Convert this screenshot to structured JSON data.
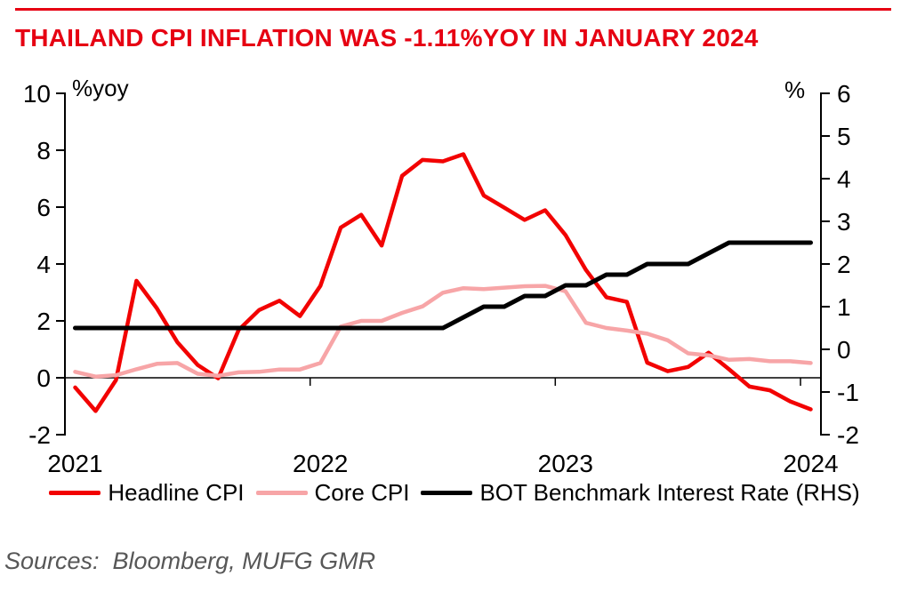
{
  "header": {
    "title": "THAILAND CPI INFLATION WAS -1.11%YOY IN JANUARY 2024",
    "title_color": "#e60012",
    "rule_color": "#e60012"
  },
  "chart_data": {
    "type": "line",
    "x": [
      "2021-01",
      "2021-02",
      "2021-03",
      "2021-04",
      "2021-05",
      "2021-06",
      "2021-07",
      "2021-08",
      "2021-09",
      "2021-10",
      "2021-11",
      "2021-12",
      "2022-01",
      "2022-02",
      "2022-03",
      "2022-04",
      "2022-05",
      "2022-06",
      "2022-07",
      "2022-08",
      "2022-09",
      "2022-10",
      "2022-11",
      "2022-12",
      "2023-01",
      "2023-02",
      "2023-03",
      "2023-04",
      "2023-05",
      "2023-06",
      "2023-07",
      "2023-08",
      "2023-09",
      "2023-10",
      "2023-11",
      "2023-12",
      "2024-01"
    ],
    "x_ticks": [
      {
        "index": 0,
        "label": "2021"
      },
      {
        "index": 12,
        "label": "2022"
      },
      {
        "index": 24,
        "label": "2023"
      },
      {
        "index": 36,
        "label": "2024"
      }
    ],
    "left_axis": {
      "label": "%yoy",
      "min": -2,
      "max": 10,
      "ticks": [
        10,
        8,
        6,
        4,
        2,
        0,
        -2
      ]
    },
    "right_axis": {
      "label": "%",
      "min": -2,
      "max": 6,
      "ticks": [
        6,
        5,
        4,
        3,
        2,
        1,
        0,
        -1,
        -2
      ]
    },
    "grid": false,
    "legend_position": "bottom",
    "series": [
      {
        "name": "Headline CPI",
        "axis": "left",
        "color": "#f20202",
        "width": 4.5,
        "values": [
          -0.34,
          -1.17,
          -0.08,
          3.41,
          2.44,
          1.25,
          0.45,
          -0.02,
          1.68,
          2.38,
          2.71,
          2.17,
          3.23,
          5.28,
          5.73,
          4.65,
          7.1,
          7.66,
          7.61,
          7.86,
          6.41,
          5.98,
          5.55,
          5.89,
          5.02,
          3.79,
          2.83,
          2.67,
          0.53,
          0.23,
          0.38,
          0.88,
          0.3,
          -0.31,
          -0.44,
          -0.83,
          -1.11
        ]
      },
      {
        "name": "Core CPI",
        "axis": "left",
        "color": "#f7a5a7",
        "width": 4.5,
        "values": [
          0.21,
          0.04,
          0.09,
          0.3,
          0.49,
          0.52,
          0.14,
          0.07,
          0.19,
          0.21,
          0.29,
          0.29,
          0.52,
          1.8,
          2.0,
          2.0,
          2.28,
          2.51,
          2.99,
          3.15,
          3.12,
          3.17,
          3.22,
          3.23,
          3.04,
          1.93,
          1.75,
          1.66,
          1.55,
          1.32,
          0.86,
          0.79,
          0.63,
          0.66,
          0.58,
          0.58,
          0.52
        ]
      },
      {
        "name": "BOT Benchmark Interest Rate (RHS)",
        "axis": "right",
        "color": "#000000",
        "width": 5,
        "values": [
          0.5,
          0.5,
          0.5,
          0.5,
          0.5,
          0.5,
          0.5,
          0.5,
          0.5,
          0.5,
          0.5,
          0.5,
          0.5,
          0.5,
          0.5,
          0.5,
          0.5,
          0.5,
          0.5,
          0.75,
          1.0,
          1.0,
          1.25,
          1.25,
          1.5,
          1.5,
          1.75,
          1.75,
          2.0,
          2.0,
          2.0,
          2.25,
          2.5,
          2.5,
          2.5,
          2.5,
          2.5
        ]
      }
    ]
  },
  "footer": {
    "sources": "Sources:  Bloomberg, MUFG GMR"
  }
}
